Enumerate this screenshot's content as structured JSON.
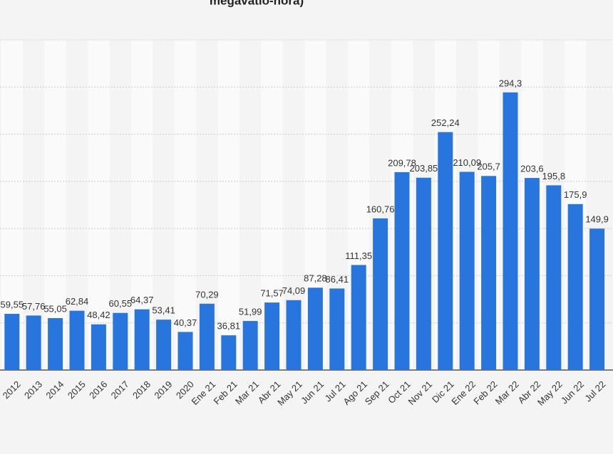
{
  "chart_data": {
    "type": "bar",
    "title": "megavatio-hora)",
    "categories": [
      "2012",
      "2013",
      "2014",
      "2015",
      "2016",
      "2017",
      "2018",
      "2019",
      "2020",
      "Ene 21",
      "Feb 21",
      "Mar 21",
      "Abr 21",
      "May 21",
      "Jun 21",
      "Jul 21",
      "Ago 21",
      "Sep 21",
      "Oct 21",
      "Nov 21",
      "Dic 21",
      "Ene 22",
      "Feb 22",
      "Mar 22",
      "Abr 22",
      "May 22",
      "Jun 22",
      "Jul 22"
    ],
    "values": [
      59.55,
      57.76,
      55.05,
      62.84,
      48.42,
      60.55,
      64.37,
      53.41,
      40.37,
      70.29,
      36.81,
      51.99,
      71.57,
      74.09,
      87.28,
      86.41,
      111.35,
      160.76,
      209.78,
      203.85,
      252.24,
      210.09,
      205.7,
      294.3,
      203.6,
      195.8,
      175.9,
      149.9
    ],
    "value_labels": [
      "59,55",
      "57,76",
      "55,05",
      "62,84",
      "48,42",
      "60,55",
      "64,37",
      "53,41",
      "40,37",
      "70,29",
      "36,81",
      "51,99",
      "71,57",
      "74,09",
      "87,28",
      "86,41",
      "111,35",
      "160,76",
      "209,78",
      "203,85",
      "252,24",
      "210,09",
      "205,7",
      "294,3",
      "203,6",
      "195,8",
      "175,9",
      "149,9"
    ],
    "color": "#2876dd",
    "ylim": [
      0,
      350
    ],
    "yticks": [
      0,
      50,
      100,
      150,
      200,
      250,
      300,
      350
    ],
    "grid": true
  }
}
